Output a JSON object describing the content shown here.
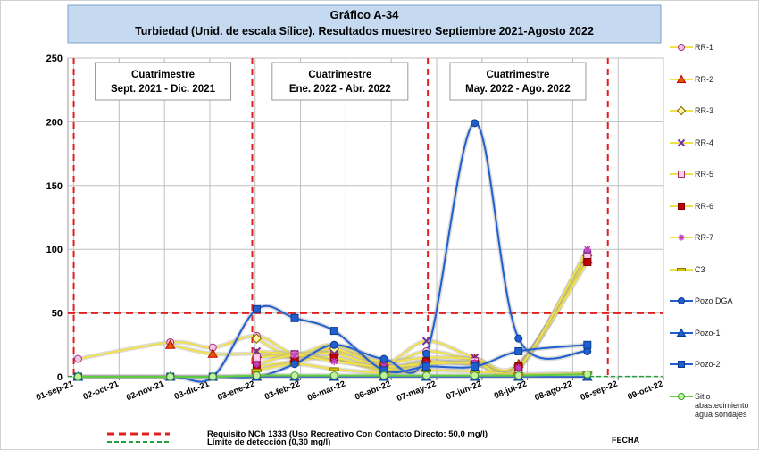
{
  "chart_data": {
    "type": "line",
    "title": "Gráfico A-34",
    "subtitle": "Turbiedad (Unid. de escala Sílice). Resultados muestreo Septiembre 2021-Agosto 2022",
    "x_label": "FECHA",
    "x": [
      "2021-09-04",
      "2021-11-06",
      "2021-12-05",
      "2022-01-04",
      "2022-01-30",
      "2022-02-26",
      "2022-04-01",
      "2022-04-30",
      "2022-06-02",
      "2022-07-02",
      "2022-08-18"
    ],
    "xlim": [
      "2021-08-28",
      "2022-10-09"
    ],
    "xticks": [
      {
        "value": "2021-09-01",
        "label": "01-sep-21"
      },
      {
        "value": "2021-10-02",
        "label": "02-oct-21"
      },
      {
        "value": "2021-11-02",
        "label": "02-nov-21"
      },
      {
        "value": "2021-12-03",
        "label": "03-dic-21"
      },
      {
        "value": "2022-01-03",
        "label": "03-ene-22"
      },
      {
        "value": "2022-02-03",
        "label": "03-feb-22"
      },
      {
        "value": "2022-03-06",
        "label": "06-mar-22"
      },
      {
        "value": "2022-04-06",
        "label": "06-abr-22"
      },
      {
        "value": "2022-05-07",
        "label": "07-may-22"
      },
      {
        "value": "2022-06-07",
        "label": "07-jun-22"
      },
      {
        "value": "2022-07-08",
        "label": "08-jul-22"
      },
      {
        "value": "2022-08-08",
        "label": "08-ago-22"
      },
      {
        "value": "2022-09-08",
        "label": "08-sep-22"
      },
      {
        "value": "2022-10-09",
        "label": "09-oct-22"
      }
    ],
    "ylim": [
      0,
      250
    ],
    "yticks": [
      0,
      50,
      100,
      150,
      200,
      250
    ],
    "grid": true,
    "smooth": true,
    "legend": "right",
    "series": [
      {
        "name": "RR-1",
        "color": "#f0e04a",
        "marker": "circle",
        "marker_color": "#f4c6e6",
        "marker_edge": "#a8307e",
        "values": [
          14,
          27,
          23,
          32,
          18,
          25,
          10,
          20,
          13,
          8,
          98
        ]
      },
      {
        "name": "RR-2",
        "color": "#f0e04a",
        "marker": "triangle",
        "marker_color": "#e05a00",
        "marker_edge": "#c00000",
        "values": [
          null,
          25,
          18,
          18,
          15,
          20,
          12,
          15,
          14,
          10,
          92
        ]
      },
      {
        "name": "RR-3",
        "color": "#f0e04a",
        "marker": "diamond",
        "marker_color": "#fff59d",
        "marker_edge": "#7f6000",
        "values": [
          null,
          null,
          null,
          30,
          15,
          22,
          8,
          12,
          10,
          9,
          95
        ]
      },
      {
        "name": "RR-4",
        "color": "#f0e04a",
        "marker": "x",
        "marker_color": "#7030a0",
        "marker_edge": "#7030a0",
        "values": [
          null,
          null,
          null,
          20,
          18,
          18,
          10,
          28,
          15,
          8,
          96
        ]
      },
      {
        "name": "RR-5",
        "color": "#f0e04a",
        "marker": "square",
        "marker_color": "#f9d0e8",
        "marker_edge": "#a0306e",
        "values": [
          null,
          null,
          null,
          15,
          17,
          14,
          5,
          10,
          12,
          6,
          94
        ]
      },
      {
        "name": "RR-6",
        "color": "#f0e04a",
        "marker": "square",
        "marker_color": "#c00000",
        "marker_edge": "#800000",
        "values": [
          null,
          null,
          null,
          8,
          12,
          15,
          6,
          12,
          10,
          8,
          90
        ]
      },
      {
        "name": "RR-7",
        "color": "#f0e04a",
        "marker": "plus",
        "marker_color": "#c040c0",
        "marker_edge": "#c040c0",
        "values": [
          null,
          null,
          null,
          10,
          17,
          12,
          8,
          10,
          11,
          7,
          100
        ]
      },
      {
        "name": "C3",
        "color": "#f0e04a",
        "marker": "dash",
        "marker_color": "#d4c000",
        "marker_edge": "#8a7c00",
        "values": [
          null,
          null,
          null,
          5,
          10,
          6,
          3,
          5,
          4,
          2,
          3
        ]
      },
      {
        "name": "Pozo DGA",
        "color": "#1f5fd0",
        "marker": "circle",
        "marker_color": "#1f5fd0",
        "marker_edge": "#0b3c8c",
        "values": [
          0,
          0,
          0,
          0,
          10,
          25,
          14,
          18,
          199,
          30,
          20
        ]
      },
      {
        "name": "Pozo-1",
        "color": "#1f5fd0",
        "marker": "triangle",
        "marker_color": "#1f5fd0",
        "marker_edge": "#0b3c8c",
        "values": [
          0,
          0,
          0,
          0,
          0,
          0,
          0,
          0,
          0,
          0,
          0
        ]
      },
      {
        "name": "Pozo-2",
        "color": "#1f5fd0",
        "marker": "square",
        "marker_color": "#1f5fd0",
        "marker_edge": "#0b3c8c",
        "values": [
          0,
          0,
          0,
          53,
          46,
          36,
          5,
          8,
          8,
          20,
          25
        ]
      },
      {
        "name": "Sitio abastecimiento agua sondajes",
        "color": "#5ccf3a",
        "marker": "circle",
        "marker_color": "#c6ef9e",
        "marker_edge": "#3aa02a",
        "values": [
          0,
          0,
          0,
          1,
          1,
          1,
          1,
          1,
          1,
          1,
          2
        ]
      }
    ],
    "reference_lines": [
      {
        "label": "Requisito NCh 1333 (Uso Recreativo Con Contacto Directo: 50,0 mg/l)",
        "value": 50,
        "color": "#e02020"
      },
      {
        "label": "Límite de detección (0,30 mg/l)",
        "value": 0.3,
        "color": "#20a040"
      }
    ],
    "period_lines": {
      "color": "#e02020",
      "dates": [
        "2021-09-01",
        "2022-01-01",
        "2022-05-01",
        "2022-09-01"
      ]
    },
    "annotations": [
      {
        "title": "Cuatrimestre",
        "text": "Sept. 2021 - Dic. 2021"
      },
      {
        "title": "Cuatrimestre",
        "text": "Ene. 2022 - Abr. 2022"
      },
      {
        "title": "Cuatrimestre",
        "text": "May. 2022 - Ago. 2022"
      }
    ]
  }
}
